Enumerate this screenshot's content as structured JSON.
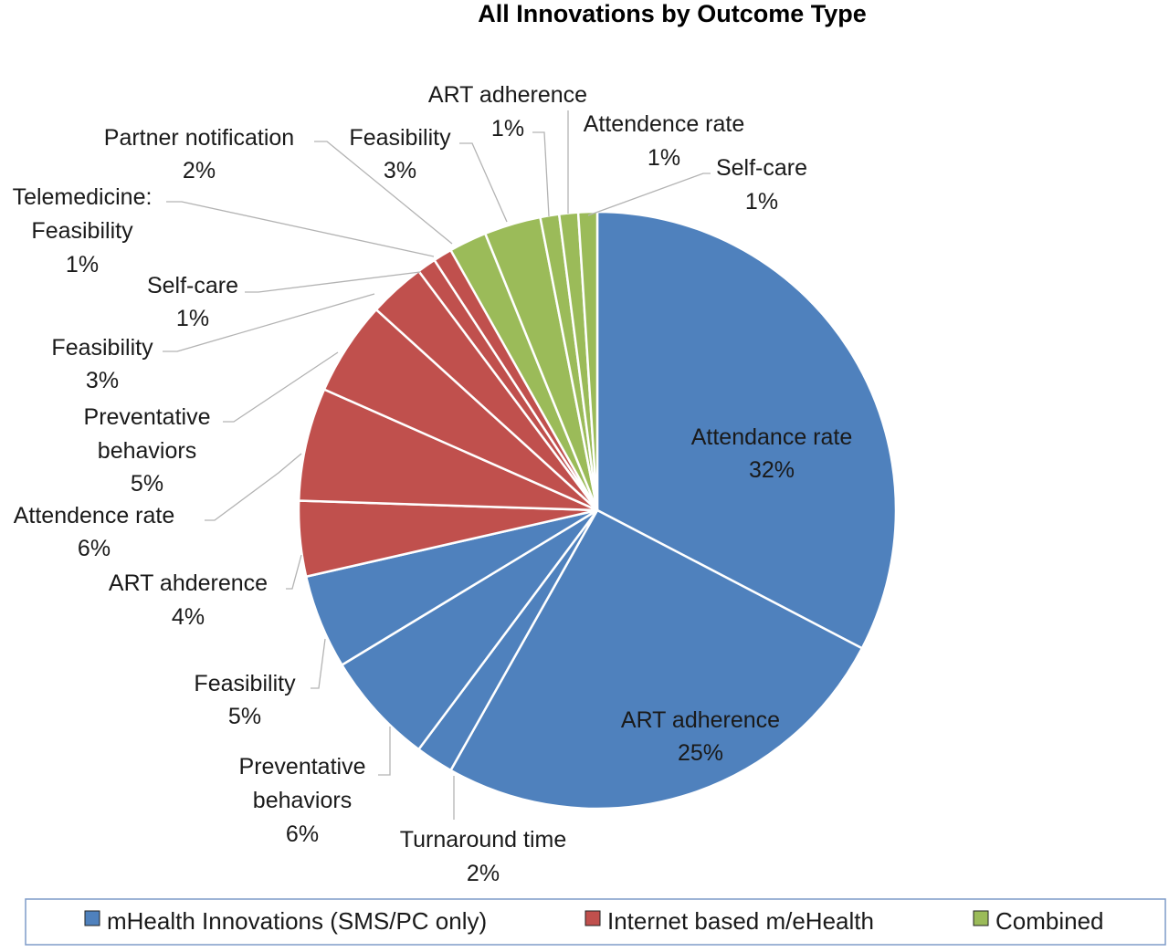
{
  "chart_data": {
    "type": "pie",
    "title": "All Innovations by Outcome Type",
    "legend": {
      "placement": "bottom",
      "entries": [
        {
          "name": "mHealth Innovations (SMS/PC only)",
          "color": "#4f81bd"
        },
        {
          "name": "Internet based m/eHealth",
          "color": "#c0504d"
        },
        {
          "name": "Combined",
          "color": "#9bbb59"
        }
      ]
    },
    "start_angle_deg": 0,
    "direction": "clockwise",
    "slices": [
      {
        "group": "mHealth Innovations (SMS/PC only)",
        "label": [
          "Attendance rate"
        ],
        "value": 32,
        "pct_label": "32%",
        "color": "#4f81bd"
      },
      {
        "group": "mHealth Innovations (SMS/PC only)",
        "label": [
          "ART adherence"
        ],
        "value": 25,
        "pct_label": "25%",
        "color": "#4f81bd"
      },
      {
        "group": "mHealth Innovations (SMS/PC only)",
        "label": [
          "Turnaround time"
        ],
        "value": 2,
        "pct_label": "2%",
        "color": "#4f81bd"
      },
      {
        "group": "mHealth Innovations (SMS/PC only)",
        "label": [
          "Preventative",
          "behaviors"
        ],
        "value": 6,
        "pct_label": "6%",
        "color": "#4f81bd"
      },
      {
        "group": "mHealth Innovations (SMS/PC only)",
        "label": [
          "Feasibility"
        ],
        "value": 5,
        "pct_label": "5%",
        "color": "#4f81bd"
      },
      {
        "group": "Internet based m/eHealth",
        "label": [
          "ART ahderence"
        ],
        "value": 4,
        "pct_label": "4%",
        "color": "#c0504d"
      },
      {
        "group": "Internet based m/eHealth",
        "label": [
          "Attendence rate"
        ],
        "value": 6,
        "pct_label": "6%",
        "color": "#c0504d"
      },
      {
        "group": "Internet based m/eHealth",
        "label": [
          "Preventative",
          "behaviors"
        ],
        "value": 5,
        "pct_label": "5%",
        "color": "#c0504d"
      },
      {
        "group": "Internet based m/eHealth",
        "label": [
          "Feasibility"
        ],
        "value": 3,
        "pct_label": "3%",
        "color": "#c0504d"
      },
      {
        "group": "Internet based m/eHealth",
        "label": [
          "Self-care"
        ],
        "value": 1,
        "pct_label": "1%",
        "color": "#c0504d"
      },
      {
        "group": "Internet based m/eHealth",
        "label": [
          "Telemedicine:",
          "Feasibility"
        ],
        "value": 1,
        "pct_label": "1%",
        "color": "#c0504d"
      },
      {
        "group": "Combined",
        "label": [
          "Partner notification"
        ],
        "value": 2,
        "pct_label": "2%",
        "color": "#9bbb59"
      },
      {
        "group": "Combined",
        "label": [
          "Feasibility"
        ],
        "value": 3,
        "pct_label": "3%",
        "color": "#9bbb59"
      },
      {
        "group": "Combined",
        "label": [
          "ART adherence"
        ],
        "value": 1,
        "pct_label": "1%",
        "color": "#9bbb59"
      },
      {
        "group": "Combined",
        "label": [
          "Attendence rate"
        ],
        "value": 1,
        "pct_label": "1%",
        "color": "#9bbb59"
      },
      {
        "group": "Combined",
        "label": [
          "Self-care"
        ],
        "value": 1,
        "pct_label": "1%",
        "color": "#9bbb59"
      }
    ]
  }
}
